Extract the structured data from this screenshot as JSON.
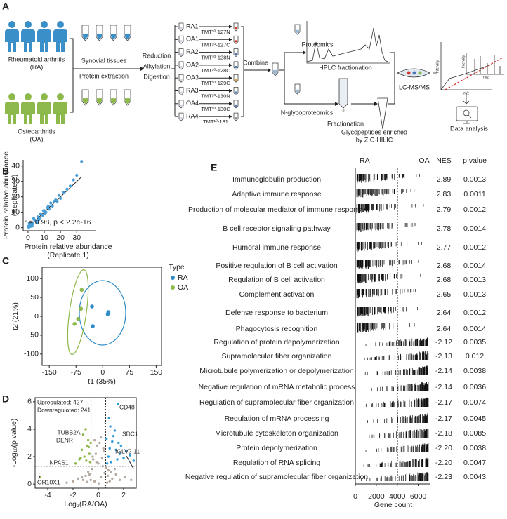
{
  "panels": [
    "A",
    "B",
    "C",
    "D",
    "E"
  ],
  "workflow": {
    "groups": [
      [
        "Rheumatoid arthritis",
        "(RA)"
      ],
      [
        "Osteoarthritis",
        "(OA)"
      ]
    ],
    "group_colors": [
      "#3a8fc8",
      "#8cb84c"
    ],
    "prep": [
      "Synovial tissues",
      "Protein extraction"
    ],
    "processing": [
      "Reduction",
      "Alkylation",
      "Digestion"
    ],
    "samples": [
      {
        "name": "RA1",
        "tag": "TMT¹⁰-127N",
        "color": "#d9342b"
      },
      {
        "name": "OA1",
        "tag": "TMT¹⁰-127C",
        "color": "#d9342b"
      },
      {
        "name": "RA2",
        "tag": "TMT¹⁰-128N",
        "color": "#4a78b5"
      },
      {
        "name": "OA2",
        "tag": "TMT¹⁰-128C",
        "color": "#4a78b5"
      },
      {
        "name": "OA3",
        "tag": "TMT¹⁰-129C",
        "color": "#e8a33c"
      },
      {
        "name": "RA3",
        "tag": "TMT¹⁰-130N",
        "color": "#4a78b5"
      },
      {
        "name": "OA4",
        "tag": "TMT¹⁰-130C",
        "color": "#4a78b5"
      },
      {
        "name": "RA4",
        "tag": "TMT¹⁰-131",
        "color": "#8a8a8a"
      }
    ],
    "combine": "Combine",
    "branches": [
      "Proteomics",
      "N-glycoproteomics"
    ],
    "hplc": "HPLC fractionation",
    "fractionation": "Fractionation",
    "tube_label": "0",
    "enrichment": [
      "Glycopeptides enriched",
      "by ZIC-HILIC"
    ],
    "lcms": "LC-MS/MS",
    "ms_labels": [
      "Intensity",
      "m/z"
    ],
    "analysis": "Data analysis"
  },
  "chart_data": [
    {
      "type": "scatter",
      "xlabel": [
        "Protein relative abundance",
        "(Replicate 1)"
      ],
      "ylabel": [
        "Protein relative abundance",
        "(Replicate 2)"
      ],
      "annotation": "r = 0.98, p < 2.2e-16",
      "xlim": [
        -3,
        42
      ],
      "ylim": [
        -2,
        44
      ],
      "xticks": [
        0,
        10,
        20,
        30
      ],
      "yticks": [
        0,
        10,
        20,
        30,
        40
      ],
      "fit_color": "#a678c0",
      "series": [
        {
          "color": "#4a9fd8",
          "x": [
            0.2,
            0.5,
            1,
            1.5,
            2,
            0.8,
            3,
            4,
            5,
            6,
            7,
            8,
            9,
            10,
            11,
            12,
            13,
            14,
            15,
            16,
            17,
            18,
            19,
            20,
            22,
            24,
            26,
            28,
            30,
            33,
            3.5,
            5.5,
            7.5,
            2.5,
            1.2,
            0.3,
            6.5,
            9.5,
            12.5,
            10.5
          ],
          "values": [
            0.5,
            0.2,
            1.5,
            0.8,
            2.5,
            3,
            2.5,
            5,
            4,
            7,
            6,
            9,
            8,
            11,
            10,
            13,
            12,
            16,
            14,
            17,
            18,
            17,
            21,
            19,
            23,
            25,
            27,
            31,
            34,
            43,
            6,
            3,
            9,
            1,
            2,
            1,
            5,
            11,
            14,
            9
          ]
        }
      ]
    },
    {
      "type": "scatter",
      "xlabel": "t1 (35%)",
      "ylabel": "t2 (21%)",
      "legend_title": "Type",
      "xlim": [
        -170,
        165
      ],
      "ylim": [
        -130,
        130
      ],
      "xticks": [
        -150,
        -75,
        0,
        75,
        150
      ],
      "yticks": [
        -100,
        -50,
        0,
        50,
        100
      ],
      "series": [
        {
          "name": "RA",
          "color": "#2e8bc6",
          "x": [
            -30,
            14,
            16,
            -28
          ],
          "values": [
            26,
            6,
            11,
            -26
          ]
        },
        {
          "name": "OA",
          "color": "#8db84a",
          "x": [
            -59,
            -61,
            -69,
            -79
          ],
          "values": [
            70,
            20,
            -7,
            -20
          ]
        }
      ]
    },
    {
      "type": "scatter",
      "xlabel": "Log₂(RA/OA)",
      "ylabel": "-Log₁₀(p value)",
      "annotations": [
        "Upregulated: 427",
        "Downregulated: 241"
      ],
      "gene_labels": [
        {
          "text": "CD48",
          "color": "#2e8bc6"
        },
        {
          "text": "SDC1",
          "color": "#2e8bc6"
        },
        {
          "text": "IGLV2-11",
          "color": "#2e8bc6"
        },
        {
          "text": "TUBB2A",
          "color": "#8db84a"
        },
        {
          "text": "DENR",
          "color": "#8db84a"
        },
        {
          "text": "NPAS1",
          "color": "#8db84a"
        },
        {
          "text": "OR10X1",
          "color": "#8db84a"
        }
      ],
      "xlim": [
        -5,
        3
      ],
      "ylim": [
        -0.3,
        6.3
      ],
      "xticks": [
        -4,
        -2,
        0,
        2
      ],
      "yticks": [
        0,
        2,
        4,
        6
      ],
      "series": [
        {
          "color": "#b5aaa0",
          "x": [
            -0.3,
            0.2,
            0.5,
            -0.6,
            0.8,
            -1.0,
            1.1,
            0.0,
            -0.2,
            0.4,
            -0.8,
            0.9,
            -1.3,
            1.4,
            0.1,
            -0.4,
            0.6,
            -1.6,
            1.7,
            0.3,
            -0.1,
            -0.5,
            0.7,
            -0.9,
            1.0,
            -1.2,
            1.3,
            -2.0,
            2.1,
            0.2,
            -0.3,
            0.45,
            -0.15,
            0.35,
            -0.45,
            0.05,
            -2.5,
            2.6,
            -0.7,
            0.75
          ],
          "values": [
            0.2,
            0.5,
            0.8,
            0.3,
            1.0,
            0.6,
            0.4,
            1.5,
            2.2,
            2.6,
            0.9,
            0.2,
            0.5,
            0.7,
            3.0,
            1.8,
            1.2,
            0.4,
            0.3,
            1.9,
            2.8,
            1.1,
            0.1,
            0.15,
            0.9,
            0.3,
            1.1,
            0.2,
            0.5,
            3.4,
            3.2,
            2.4,
            1.6,
            1.3,
            2.0,
            0.05,
            0.1,
            0.3,
            0.7,
            0.6
          ]
        },
        {
          "color": "#2e9bd6",
          "x": [
            1.55,
            1.3,
            0.8,
            0.9,
            1.1,
            1.4,
            1.7,
            2.0,
            2.8,
            0.7,
            0.95,
            1.2,
            1.6,
            1.8,
            2.2,
            0.65,
            1.0,
            1.5,
            0.85,
            2.5
          ],
          "values": [
            5.85,
            3.9,
            2.0,
            2.6,
            3.1,
            2.5,
            2.2,
            1.9,
            1.7,
            1.5,
            4.2,
            3.5,
            3.0,
            2.8,
            2.4,
            3.3,
            1.6,
            1.8,
            4.8,
            2.1
          ]
        },
        {
          "color": "#8db84a",
          "x": [
            -1.0,
            -1.2,
            -0.9,
            -1.5,
            -0.7,
            -0.8,
            -1.1,
            -1.3,
            -0.65,
            -1.8,
            -0.75,
            -0.95,
            -1.4,
            -0.6,
            -4.6
          ],
          "values": [
            4.0,
            3.6,
            2.8,
            1.8,
            2.2,
            3.2,
            2.0,
            2.5,
            1.6,
            1.5,
            2.7,
            1.7,
            1.9,
            3.0,
            0.5
          ]
        }
      ]
    }
  ],
  "gsea": {
    "headers": [
      "RA",
      "OA",
      "NES",
      "p value"
    ],
    "axis_label": "Gene count",
    "xlim": [
      0,
      7100
    ],
    "xticks": [
      0,
      2000,
      4000,
      6000
    ],
    "rows": [
      {
        "term": "Immunoglobulin production",
        "nes": "2.89",
        "p": "0.0013"
      },
      {
        "term": "Adaptive immune response",
        "nes": "2.83",
        "p": "0.0011"
      },
      {
        "term": "Production of molecular mediator of immune response",
        "nes": "2.79",
        "p": "0.0012"
      },
      {
        "term": "B cell receptor signaling pathway",
        "nes": "2.78",
        "p": "0.0014"
      },
      {
        "term": "Humoral immune response",
        "nes": "2.77",
        "p": "0.0012"
      },
      {
        "term": "Positive regulation of B cell activation",
        "nes": "2.68",
        "p": "0.0014"
      },
      {
        "term": "Regulation of B cell activation",
        "nes": "2.68",
        "p": "0.0013"
      },
      {
        "term": "Complement activation",
        "nes": "2.65",
        "p": "0.0013"
      },
      {
        "term": "Defense response to bacterium",
        "nes": "2.64",
        "p": "0.0012"
      },
      {
        "term": "Phagocytosis recognition",
        "nes": "2.64",
        "p": "0.0014"
      },
      {
        "term": "Regulation of protein depolymerization",
        "nes": "-2.12",
        "p": "0.0035"
      },
      {
        "term": "Supramolecular fiber organization",
        "nes": "-2.13",
        "p": "0.012"
      },
      {
        "term": "Microtubule polymerization or depolymerization",
        "nes": "-2.14",
        "p": "0.0038"
      },
      {
        "term": "Negative regulation of mRNA metabolic process",
        "nes": "-2.14",
        "p": "0.0036"
      },
      {
        "term": "Regulation of supramolecular fiber organization",
        "nes": "-2.17",
        "p": "0.0074"
      },
      {
        "term": "Regulation of mRNA processing",
        "nes": "-2.17",
        "p": "0.0045"
      },
      {
        "term": "Microtubule cytoskeleton organization",
        "nes": "-2.18",
        "p": "0.0085"
      },
      {
        "term": "Protein depolymerization",
        "nes": "-2.20",
        "p": "0.0038"
      },
      {
        "term": "Regulation of RNA splicing",
        "nes": "-2.20",
        "p": "0.0047"
      },
      {
        "term": "Negative regulation of supramolecular fiber organization",
        "nes": "-2.23",
        "p": "0.0043"
      }
    ]
  }
}
